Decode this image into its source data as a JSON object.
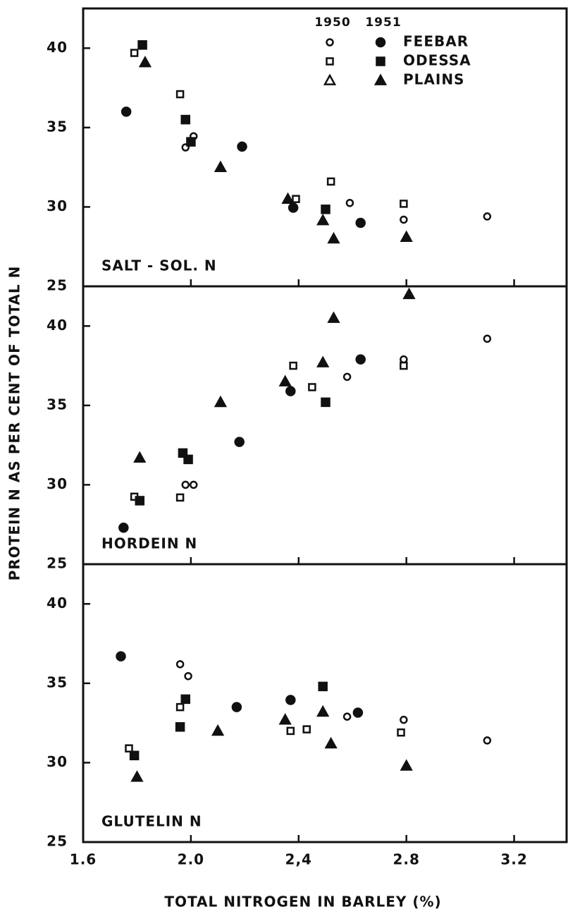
{
  "x_label": "TOTAL NITROGEN IN BARLEY (%)",
  "y_label": "PROTEIN N AS PER CENT OF TOTAL N",
  "legend": {
    "columns": [
      "1950",
      "1951"
    ],
    "rows": [
      "FEEBAR",
      "ODESSA",
      "PLAINS"
    ],
    "markers": [
      "circle",
      "square",
      "triangle"
    ]
  },
  "chart_data": [
    {
      "type": "scatter",
      "label": "SALT - SOL. N",
      "xlim": [
        1.6,
        3.4
      ],
      "ylim": [
        25,
        42.5
      ],
      "yticks": [
        25,
        30,
        35,
        40
      ],
      "color": "#111",
      "series": [
        {
          "marker": "circle",
          "filled": false,
          "x": [
            1.98,
            2.01,
            2.59,
            2.79,
            3.1
          ],
          "values": [
            33.75,
            34.45,
            30.25,
            29.2,
            29.4
          ]
        },
        {
          "marker": "circle",
          "filled": true,
          "x": [
            1.76,
            2.19,
            2.38,
            2.63
          ],
          "values": [
            36.0,
            33.8,
            29.95,
            29.0
          ]
        },
        {
          "marker": "square",
          "filled": false,
          "x": [
            1.79,
            1.96,
            2.39,
            2.52,
            2.79
          ],
          "values": [
            39.7,
            37.1,
            30.5,
            31.6,
            30.2
          ]
        },
        {
          "marker": "square",
          "filled": true,
          "x": [
            1.82,
            1.98,
            2.0,
            2.5
          ],
          "values": [
            40.2,
            35.5,
            34.1,
            29.85
          ]
        },
        {
          "marker": "triangle",
          "filled": true,
          "x": [
            1.83,
            2.11,
            2.36,
            2.49,
            2.53,
            2.8
          ],
          "values": [
            39.1,
            32.5,
            30.5,
            29.15,
            28.0,
            28.1
          ]
        }
      ]
    },
    {
      "type": "scatter",
      "label": "HORDEIN N",
      "xlim": [
        1.6,
        3.4
      ],
      "ylim": [
        25,
        42.5
      ],
      "yticks": [
        25,
        30,
        35,
        40
      ],
      "color": "#111",
      "series": [
        {
          "marker": "circle",
          "filled": false,
          "x": [
            1.98,
            2.01,
            2.58,
            2.79,
            3.1
          ],
          "values": [
            30.0,
            30.0,
            36.8,
            37.9,
            39.2
          ]
        },
        {
          "marker": "circle",
          "filled": true,
          "x": [
            1.75,
            2.18,
            2.37,
            2.63
          ],
          "values": [
            27.3,
            32.7,
            35.9,
            37.9
          ]
        },
        {
          "marker": "square",
          "filled": false,
          "x": [
            1.79,
            1.96,
            2.38,
            2.45,
            2.79
          ],
          "values": [
            29.25,
            29.2,
            37.5,
            36.15,
            37.5
          ]
        },
        {
          "marker": "square",
          "filled": true,
          "x": [
            1.81,
            1.97,
            1.99,
            2.5
          ],
          "values": [
            29.0,
            32.0,
            31.6,
            35.2
          ]
        },
        {
          "marker": "triangle",
          "filled": true,
          "x": [
            1.81,
            2.11,
            2.35,
            2.49,
            2.53,
            2.81
          ],
          "values": [
            31.7,
            35.2,
            36.5,
            37.7,
            40.5,
            42.0
          ]
        }
      ]
    },
    {
      "type": "scatter",
      "label": "GLUTELIN N",
      "xlim": [
        1.6,
        3.4
      ],
      "ylim": [
        25,
        42.5
      ],
      "yticks": [
        25,
        30,
        35,
        40
      ],
      "color": "#111",
      "xticks": [
        1.6,
        {
          "value": 2.0,
          "label": "2.0"
        },
        {
          "value": 2.4,
          "label": "2,4"
        },
        2.8,
        3.2
      ],
      "series": [
        {
          "marker": "circle",
          "filled": false,
          "x": [
            1.96,
            1.99,
            2.58,
            2.79,
            3.1
          ],
          "values": [
            36.2,
            35.45,
            32.9,
            32.7,
            31.4
          ]
        },
        {
          "marker": "circle",
          "filled": true,
          "x": [
            1.74,
            2.17,
            2.37,
            2.62
          ],
          "values": [
            36.7,
            33.5,
            33.95,
            33.15
          ]
        },
        {
          "marker": "square",
          "filled": false,
          "x": [
            1.77,
            1.96,
            2.37,
            2.43,
            2.78
          ],
          "values": [
            30.9,
            33.5,
            32.0,
            32.1,
            31.9
          ]
        },
        {
          "marker": "square",
          "filled": true,
          "x": [
            1.79,
            1.96,
            1.98,
            2.49
          ],
          "values": [
            30.45,
            32.25,
            34.0,
            34.8
          ]
        },
        {
          "marker": "triangle",
          "filled": true,
          "x": [
            1.8,
            2.1,
            2.35,
            2.49,
            2.52,
            2.8
          ],
          "values": [
            29.1,
            32.0,
            32.7,
            33.2,
            31.2,
            29.8
          ]
        }
      ]
    }
  ]
}
